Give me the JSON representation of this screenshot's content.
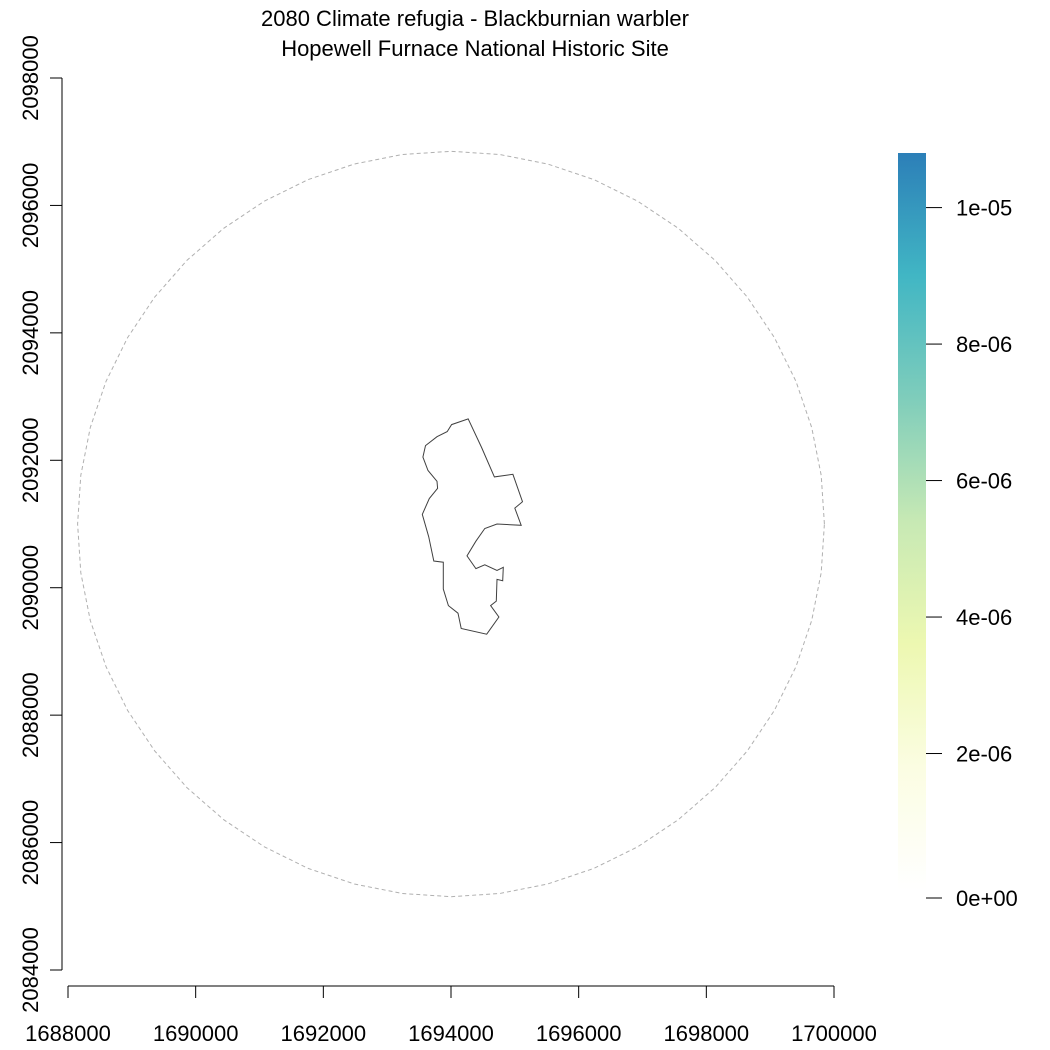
{
  "title": {
    "line1": "2080 Climate refugia - Blackburnian warbler",
    "line2": "Hopewell Furnace National Historic Site"
  },
  "axes": {
    "x": {
      "min": 1688000,
      "max": 1700000,
      "ticks": [
        "1688000",
        "1690000",
        "1692000",
        "1694000",
        "1696000",
        "1698000",
        "1700000"
      ]
    },
    "y": {
      "min": 2084000,
      "max": 2098000,
      "ticks": [
        "2084000",
        "2086000",
        "2088000",
        "2090000",
        "2092000",
        "2094000",
        "2096000",
        "2098000"
      ]
    }
  },
  "buffer": {
    "center": [
      1694000,
      2091000
    ],
    "radius": 5850,
    "style": "dashed",
    "color": "#b0b0b0"
  },
  "park_boundary": {
    "color": "#404040",
    "points": [
      [
        1694270,
        2092650
      ],
      [
        1694480,
        2092200
      ],
      [
        1694680,
        2091740
      ],
      [
        1694970,
        2091780
      ],
      [
        1695120,
        2091350
      ],
      [
        1695000,
        2091250
      ],
      [
        1695100,
        2090980
      ],
      [
        1694720,
        2091000
      ],
      [
        1694530,
        2090930
      ],
      [
        1694390,
        2090730
      ],
      [
        1694250,
        2090500
      ],
      [
        1694390,
        2090300
      ],
      [
        1694530,
        2090360
      ],
      [
        1694720,
        2090270
      ],
      [
        1694820,
        2090320
      ],
      [
        1694810,
        2090110
      ],
      [
        1694720,
        2090130
      ],
      [
        1694710,
        2089790
      ],
      [
        1694620,
        2089720
      ],
      [
        1694750,
        2089540
      ],
      [
        1694560,
        2089270
      ],
      [
        1694160,
        2089360
      ],
      [
        1694110,
        2089600
      ],
      [
        1693960,
        2089720
      ],
      [
        1693880,
        2089980
      ],
      [
        1693880,
        2090400
      ],
      [
        1693730,
        2090420
      ],
      [
        1693650,
        2090800
      ],
      [
        1693550,
        2091150
      ],
      [
        1693660,
        2091400
      ],
      [
        1693790,
        2091560
      ],
      [
        1693780,
        2091670
      ],
      [
        1693640,
        2091840
      ],
      [
        1693560,
        2092050
      ],
      [
        1693600,
        2092230
      ],
      [
        1693780,
        2092370
      ],
      [
        1693940,
        2092450
      ],
      [
        1694010,
        2092560
      ]
    ]
  },
  "colorbar": {
    "min": 0,
    "max": 1.08e-05,
    "colors": [
      "#ffffff",
      "#fbfde2",
      "#edf8b1",
      "#c7e9b4",
      "#7fcdbb",
      "#41b6c4",
      "#2c7fb8"
    ],
    "ticks": [
      {
        "value": 0,
        "label": "0e+00"
      },
      {
        "value": 2e-06,
        "label": "2e-06"
      },
      {
        "value": 4e-06,
        "label": "4e-06"
      },
      {
        "value": 6e-06,
        "label": "6e-06"
      },
      {
        "value": 8e-06,
        "label": "8e-06"
      },
      {
        "value": 1e-05,
        "label": "1e-05"
      }
    ]
  }
}
